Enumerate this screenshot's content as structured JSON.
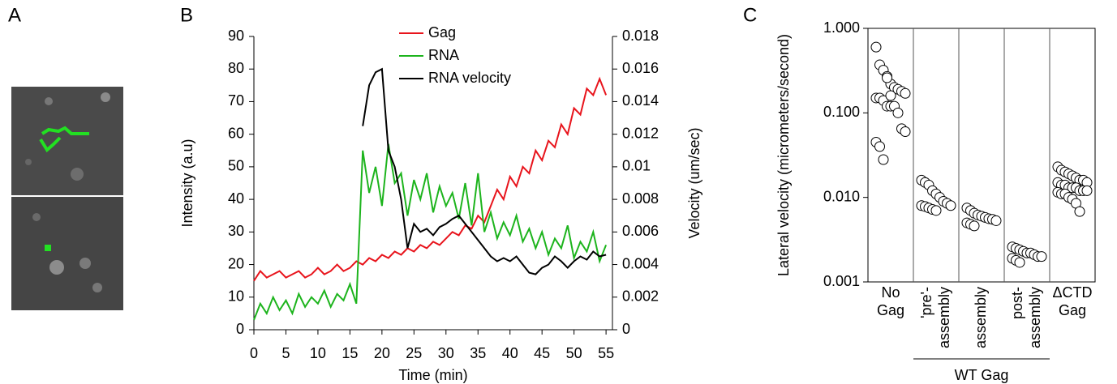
{
  "panel_a": {
    "label": "A"
  },
  "chart_data": [
    {
      "type": "line",
      "panel_label": "B",
      "x_label": "Time (min)",
      "y_label": "Intensity (a.u)",
      "y2_label": "Velocity (um/sec)",
      "x": [
        0,
        1,
        2,
        3,
        4,
        5,
        6,
        7,
        8,
        9,
        10,
        11,
        12,
        13,
        14,
        15,
        16,
        17,
        18,
        19,
        20,
        21,
        22,
        23,
        24,
        25,
        26,
        27,
        28,
        29,
        30,
        31,
        32,
        33,
        34,
        35,
        36,
        37,
        38,
        39,
        40,
        41,
        42,
        43,
        44,
        45,
        46,
        47,
        48,
        49,
        50,
        51,
        52,
        53,
        54,
        55
      ],
      "series": [
        {
          "name": "Gag",
          "color": "#e8141c",
          "values": [
            15,
            18,
            16,
            17,
            18,
            16,
            17,
            18,
            16,
            17,
            19,
            17,
            18,
            20,
            18,
            19,
            21,
            20,
            22,
            21,
            23,
            22,
            24,
            23,
            25,
            24,
            26,
            25,
            27,
            26,
            28,
            30,
            29,
            32,
            31,
            35,
            33,
            38,
            43,
            40,
            47,
            44,
            50,
            48,
            55,
            52,
            58,
            56,
            63,
            60,
            68,
            66,
            74,
            72,
            77,
            72
          ]
        },
        {
          "name": "RNA",
          "color": "#1db41d",
          "values": [
            3,
            8,
            5,
            10,
            6,
            9,
            5,
            11,
            7,
            10,
            8,
            12,
            7,
            11,
            9,
            14,
            8,
            55,
            42,
            50,
            38,
            57,
            45,
            48,
            35,
            46,
            40,
            48,
            36,
            44,
            38,
            42,
            34,
            45,
            32,
            48,
            30,
            36,
            28,
            33,
            29,
            35,
            27,
            31,
            25,
            30,
            23,
            28,
            25,
            32,
            22,
            27,
            24,
            30,
            21,
            26
          ]
        },
        {
          "name": "RNA velocity",
          "color": "#000000",
          "axis": "y2",
          "values": [
            null,
            null,
            null,
            null,
            null,
            null,
            null,
            null,
            null,
            null,
            null,
            null,
            null,
            null,
            null,
            null,
            null,
            0.0125,
            0.015,
            0.0158,
            0.016,
            0.011,
            0.01,
            0.008,
            0.005,
            0.0065,
            0.006,
            0.0062,
            0.0058,
            0.0063,
            0.0065,
            0.0068,
            0.007,
            0.0065,
            0.006,
            0.0055,
            0.005,
            0.0045,
            0.0042,
            0.0044,
            0.0042,
            0.0045,
            0.004,
            0.0035,
            0.0034,
            0.0038,
            0.004,
            0.0045,
            0.0042,
            0.0038,
            0.0042,
            0.0045,
            0.0043,
            0.0048,
            0.0045,
            0.0046
          ]
        }
      ],
      "xlim": [
        0,
        56
      ],
      "xticks": [
        0,
        5,
        10,
        15,
        20,
        25,
        30,
        35,
        40,
        45,
        50,
        55
      ],
      "ylim": [
        0,
        90
      ],
      "yticks": [
        0,
        10,
        20,
        30,
        40,
        50,
        60,
        70,
        80,
        90
      ],
      "y2lim": [
        0,
        0.018
      ],
      "y2ticks": [
        0,
        0.002,
        0.004,
        0.006,
        0.008,
        0.01,
        0.012,
        0.014,
        0.016,
        0.018
      ],
      "legend": "top-center"
    },
    {
      "type": "scatter",
      "panel_label": "C",
      "log_y": true,
      "y_label": "Lateral velocity (micrometers/second)",
      "categories": [
        [
          "No",
          "Gag"
        ],
        [
          "'pre'-",
          "assembly"
        ],
        [
          "assembly"
        ],
        [
          "post-",
          "assembly"
        ],
        [
          "ΔCTD",
          "Gag"
        ]
      ],
      "group_label": "WT Gag",
      "marker_color": "#000000",
      "values": [
        [
          0.6,
          0.37,
          0.32,
          0.27,
          0.22,
          0.2,
          0.19,
          0.18,
          0.17,
          0.15,
          0.15,
          0.14,
          0.12,
          0.12,
          0.12,
          0.1,
          0.065,
          0.06,
          0.045,
          0.04,
          0.028,
          0.26,
          0.16
        ],
        [
          0.016,
          0.015,
          0.014,
          0.012,
          0.011,
          0.01,
          0.009,
          0.0085,
          0.008,
          0.008,
          0.0078,
          0.0075,
          0.0072,
          0.007
        ],
        [
          0.0075,
          0.007,
          0.0065,
          0.0062,
          0.006,
          0.0058,
          0.0056,
          0.0055,
          0.0053,
          0.005,
          0.0048,
          0.0046
        ],
        [
          0.0026,
          0.0025,
          0.0024,
          0.0023,
          0.0022,
          0.0022,
          0.0021,
          0.002,
          0.002,
          0.0019,
          0.0018,
          0.0017
        ],
        [
          0.023,
          0.021,
          0.02,
          0.019,
          0.018,
          0.017,
          0.016,
          0.016,
          0.015,
          0.015,
          0.014,
          0.014,
          0.013,
          0.013,
          0.013,
          0.012,
          0.012,
          0.012,
          0.0115,
          0.011,
          0.011,
          0.01,
          0.0095,
          0.0085,
          0.0068
        ]
      ],
      "ylim": [
        0.001,
        1
      ],
      "yticks": [
        {
          "value": 1,
          "label": "1.000"
        },
        {
          "value": 0.1,
          "label": "0.100"
        },
        {
          "value": 0.01,
          "label": "0.010"
        },
        {
          "value": 0.001,
          "label": "0.001"
        }
      ]
    }
  ]
}
